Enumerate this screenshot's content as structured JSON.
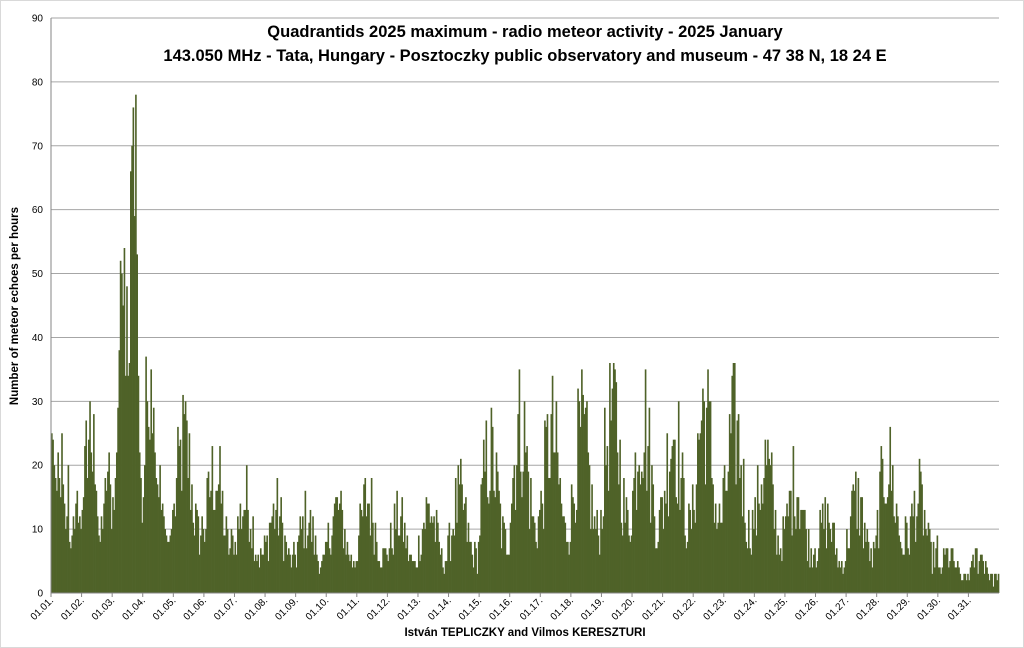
{
  "chart_data": {
    "type": "bar",
    "title": "Quadrantids 2025 maximum - radio meteor activity - 2025 January",
    "subtitle": "143.050 MHz - Tata, Hungary - Posztoczky public observatory and museum - 47 38 N, 18 24 E",
    "xlabel": "István TEPLICZKY and Vilmos KERESZTURI",
    "ylabel": "Number of meteor echoes per hours",
    "ylim": [
      0,
      90
    ],
    "yticks": [
      "0",
      "10",
      "20",
      "30",
      "40",
      "50",
      "60",
      "70",
      "80",
      "90"
    ],
    "categories": [
      "01.01.",
      "01.02.",
      "01.03.",
      "01.04.",
      "01.05.",
      "01.06.",
      "01.07.",
      "01.08.",
      "01.09.",
      "01.10.",
      "01.11.",
      "01.12.",
      "01.13.",
      "01.14.",
      "01.15.",
      "01.16.",
      "01.17.",
      "01.18.",
      "01.19.",
      "01.20.",
      "01.21.",
      "01.22.",
      "01.23.",
      "01.24.",
      "01.25.",
      "01.26.",
      "01.27.",
      "01.28.",
      "01.29.",
      "01.30.",
      "01.31."
    ],
    "hours_per_category": 24,
    "grid": true,
    "legend": "none",
    "bar_color": "#4f6228",
    "series": [
      {
        "values": [
          [
            25,
            24,
            20,
            18,
            16,
            22,
            18,
            15,
            25,
            17,
            14,
            10,
            12,
            20,
            8,
            7,
            9,
            12,
            10,
            14,
            16,
            11,
            12,
            10
          ],
          [
            13,
            15,
            23,
            27,
            18,
            24,
            30,
            22,
            19,
            28,
            17,
            16,
            12,
            9,
            8,
            12,
            10,
            14,
            18,
            16,
            19,
            22,
            17,
            10
          ],
          [
            15,
            13,
            18,
            22,
            29,
            38,
            52,
            50,
            45,
            54,
            34,
            48,
            34,
            36,
            66,
            70,
            76,
            59,
            78,
            53,
            34,
            22,
            18,
            11
          ],
          [
            15,
            20,
            37,
            30,
            26,
            24,
            35,
            25,
            29,
            22,
            18,
            17,
            15,
            20,
            13,
            14,
            12,
            10,
            9,
            8,
            8,
            9,
            10,
            13
          ]
        ],
        "series_note_hidden": ""
      }
    ]
  }
}
